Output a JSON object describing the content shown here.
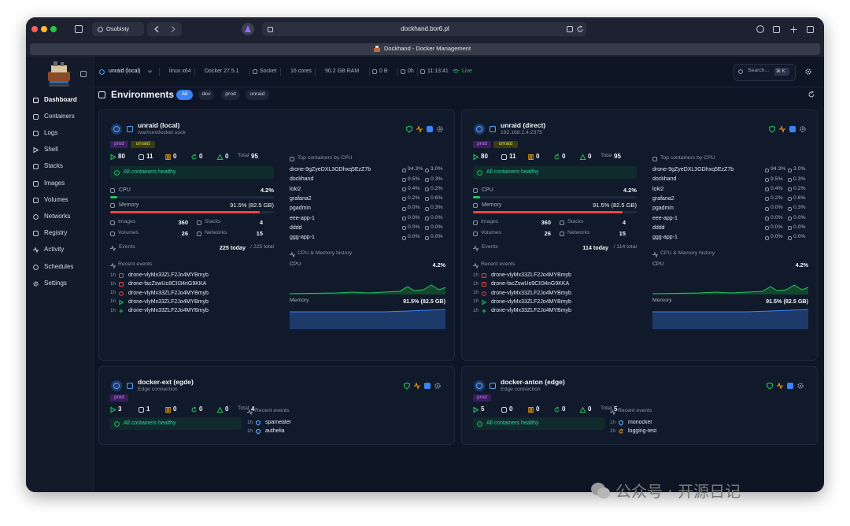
{
  "browser": {
    "profile": "Osobisty",
    "url": "dockhand.bor6.pl",
    "tab_title": "Dockhand - Docker Management"
  },
  "sidebar": {
    "nav": [
      "Dashboard",
      "Containers",
      "Logs",
      "Shell",
      "Stacks",
      "Images",
      "Volumes",
      "Networks",
      "Registry",
      "Activity",
      "Schedules",
      "Settings"
    ]
  },
  "topbar": {
    "environment": "unraid (local)",
    "stats": [
      "linux x64",
      "Docker 27.5.1",
      "Socket",
      "16 cores",
      "90.2 GB RAM",
      "0 B",
      "0h",
      "11:13:41"
    ],
    "live": "Live",
    "search": "Search...",
    "shortcut": "⌘ K"
  },
  "header": {
    "title": "Environments",
    "filters": [
      "All",
      "dev",
      "prod",
      "unraid"
    ]
  },
  "cards": [
    {
      "name": "unraid (local)",
      "address": "/var/run/docker.sock",
      "tags": [
        "prod",
        "unraid"
      ],
      "counts": [
        "80",
        "11",
        "0",
        "0",
        "0"
      ],
      "total_label": "Total",
      "total": "95",
      "health": "All containers healthy",
      "cpu_label": "CPU",
      "cpu": {
        "value": 4.2,
        "label": "4.2%"
      },
      "memory_label": "Memory",
      "memory": {
        "value": 91.5,
        "label": "91.5% (82.5 GB)"
      },
      "resources": [
        [
          "Images",
          "360"
        ],
        [
          "Stacks",
          "4"
        ],
        [
          "Volumes",
          "26"
        ],
        [
          "Networks",
          "15"
        ]
      ],
      "events_label": "Events",
      "events_today": "225 today",
      "events_total": "/ 225 total",
      "recent_label": "Recent events",
      "recent": [
        [
          "1h",
          "drone-vlyMx33ZLF2Jo4MYBmyb"
        ],
        [
          "1h",
          "drone-facZswUo9CII34nG9KKA"
        ],
        [
          "1h",
          "drone-vlyMx33ZLF2Jo4MYBmyb"
        ],
        [
          "1h",
          "drone-vlyMx33ZLF2Jo4MYBmyb"
        ],
        [
          "1h",
          "drone-vlyMx33ZLF2Jo4MYBmyb"
        ]
      ],
      "top_label": "Top containers by CPU",
      "top": [
        [
          "drone-9gZyeDXL3GDhxq5EzZ7b",
          "94.3%",
          "3.0%"
        ],
        [
          "dockhand",
          "9.5%",
          "0.3%"
        ],
        [
          "loki2",
          "0.4%",
          "0.2%"
        ],
        [
          "grafana2",
          "0.2%",
          "0.6%"
        ],
        [
          "pgadmin",
          "0.0%",
          "0.3%"
        ],
        [
          "eee-app-1",
          "0.0%",
          "0.0%"
        ],
        [
          "dddd",
          "0.0%",
          "0.0%"
        ],
        [
          "ggg-app-1",
          "0.0%",
          "0.0%"
        ]
      ],
      "history_label": "CPU & Memory history",
      "history_cpu_label": "CPU",
      "history_cpu": "4.2%",
      "history_memory_label": "Memory",
      "history_memory": "91.5% (82.5 GB)"
    },
    {
      "name": "unraid (direct)",
      "address": "192.168.1.4:2375",
      "tags": [
        "prod",
        "unraid"
      ],
      "counts": [
        "80",
        "11",
        "0",
        "0",
        "0"
      ],
      "total_label": "Total",
      "total": "95",
      "health": "All containers healthy",
      "cpu_label": "CPU",
      "cpu": {
        "value": 4.2,
        "label": "4.2%"
      },
      "memory_label": "Memory",
      "memory": {
        "value": 91.5,
        "label": "91.5% (82.5 GB)"
      },
      "resources": [
        [
          "Images",
          "360"
        ],
        [
          "Stacks",
          "4"
        ],
        [
          "Volumes",
          "26"
        ],
        [
          "Networks",
          "15"
        ]
      ],
      "events_label": "Events",
      "events_today": "114 today",
      "events_total": "/ 114 total",
      "recent_label": "Recent events",
      "recent": [
        [
          "1h",
          "drone-vlyMx33ZLF2Jo4MYBmyb"
        ],
        [
          "1h",
          "drone-facZswUo9CII34nG9KKA"
        ],
        [
          "1h",
          "drone-vlyMx33ZLF2Jo4MYBmyb"
        ],
        [
          "1h",
          "drone-vlyMx33ZLF2Jo4MYBmyb"
        ],
        [
          "1h",
          "drone-vlyMx33ZLF2Jo4MYBmyb"
        ]
      ],
      "top_label": "Top containers by CPU",
      "top": [
        [
          "drone-9gZyeDXL3GDhxq5EzZ7b",
          "94.3%",
          "3.0%"
        ],
        [
          "dockhand",
          "9.5%",
          "0.3%"
        ],
        [
          "loki2",
          "0.4%",
          "0.2%"
        ],
        [
          "grafana2",
          "0.2%",
          "0.6%"
        ],
        [
          "pgadmin",
          "0.0%",
          "0.3%"
        ],
        [
          "eee-app-1",
          "0.0%",
          "0.0%"
        ],
        [
          "dddd",
          "0.0%",
          "0.0%"
        ],
        [
          "ggg-app-1",
          "0.0%",
          "0.0%"
        ]
      ],
      "history_label": "CPU & Memory history",
      "history_cpu_label": "CPU",
      "history_cpu": "4.2%",
      "history_memory_label": "Memory",
      "history_memory": "91.5% (82.5 GB)"
    },
    {
      "name": "docker-ext (egde)",
      "address": "Edge connection",
      "tags": [
        "prod"
      ],
      "counts": [
        "3",
        "1",
        "0",
        "0",
        "0"
      ],
      "total_label": "Total",
      "total": "4",
      "health": "All containers healthy",
      "recent_label": "Recent events",
      "recent": [
        [
          "1h",
          "spameater"
        ],
        [
          "1h",
          "authelia"
        ]
      ]
    },
    {
      "name": "docker-anton (edge)",
      "address": "Edge connection",
      "tags": [
        "prod"
      ],
      "counts": [
        "5",
        "0",
        "0",
        "0",
        "0"
      ],
      "total_label": "Total",
      "total": "5",
      "health": "All containers healthy",
      "recent_label": "Recent events",
      "recent": [
        [
          "1h",
          "monocker"
        ],
        [
          "1h",
          "logging-test"
        ]
      ]
    }
  ],
  "watermark": "公众号 · 开源日记"
}
